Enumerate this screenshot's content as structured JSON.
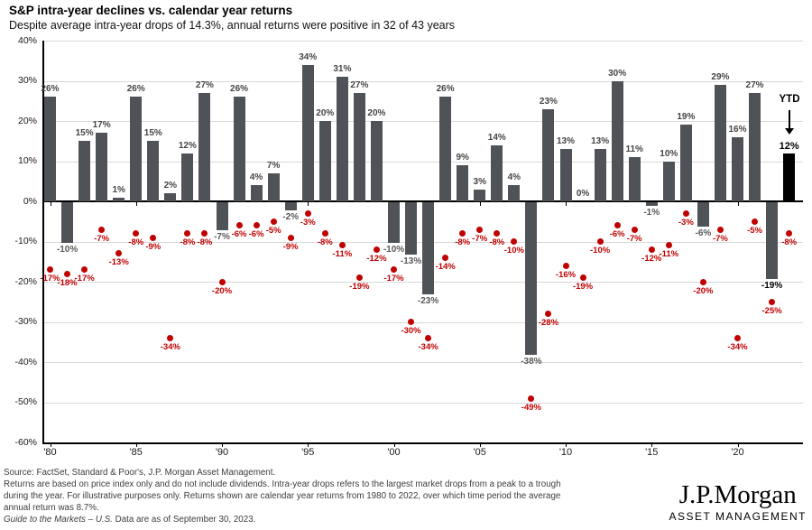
{
  "header": {
    "title": "S&P intra-year declines vs. calendar year returns",
    "subtitle": "Despite average intra-year drops of 14.3%, annual returns were positive in 32 of 43 years"
  },
  "chart_data": {
    "type": "bar",
    "title": "S&P intra-year declines vs. calendar year returns",
    "subtitle": "Despite average intra-year drops of 14.3%, annual returns were positive in 32 of 43 years",
    "ylim": [
      -60,
      40
    ],
    "grid": true,
    "y_ticks": [
      40,
      30,
      20,
      10,
      0,
      -10,
      -20,
      -30,
      -40,
      -50,
      -60
    ],
    "x_ticks": [
      {
        "year": 1980,
        "label": "'80"
      },
      {
        "year": 1985,
        "label": "'85"
      },
      {
        "year": 1990,
        "label": "'90"
      },
      {
        "year": 1995,
        "label": "'95"
      },
      {
        "year": 2000,
        "label": "'00"
      },
      {
        "year": 2005,
        "label": "'05"
      },
      {
        "year": 2010,
        "label": "'10"
      },
      {
        "year": 2015,
        "label": "'15"
      },
      {
        "year": 2020,
        "label": "'20"
      }
    ],
    "series": [
      {
        "name": "Calendar year return",
        "type": "bar",
        "color": "#4f5357"
      },
      {
        "name": "Intra-year decline",
        "type": "scatter",
        "color": "#c00000"
      }
    ],
    "points": [
      {
        "year": 1980,
        "bar": 26,
        "dot": -17
      },
      {
        "year": 1981,
        "bar": -10,
        "dot": -18
      },
      {
        "year": 1982,
        "bar": 15,
        "dot": -17
      },
      {
        "year": 1983,
        "bar": 17,
        "dot": -7
      },
      {
        "year": 1984,
        "bar": 1,
        "dot": -13
      },
      {
        "year": 1985,
        "bar": 26,
        "dot": -8
      },
      {
        "year": 1986,
        "bar": 15,
        "dot": -9
      },
      {
        "year": 1987,
        "bar": 2,
        "dot": -34
      },
      {
        "year": 1988,
        "bar": 12,
        "dot": -8
      },
      {
        "year": 1989,
        "bar": 27,
        "dot": -8
      },
      {
        "year": 1990,
        "bar": -7,
        "dot": -20
      },
      {
        "year": 1991,
        "bar": 26,
        "dot": -6
      },
      {
        "year": 1992,
        "bar": 4,
        "dot": -6
      },
      {
        "year": 1993,
        "bar": 7,
        "dot": -5
      },
      {
        "year": 1994,
        "bar": -2,
        "dot": -9
      },
      {
        "year": 1995,
        "bar": 34,
        "dot": -3
      },
      {
        "year": 1996,
        "bar": 20,
        "dot": -8
      },
      {
        "year": 1997,
        "bar": 31,
        "dot": -11
      },
      {
        "year": 1998,
        "bar": 27,
        "dot": -19
      },
      {
        "year": 1999,
        "bar": 20,
        "dot": -12
      },
      {
        "year": 2000,
        "bar": -10,
        "dot": -17
      },
      {
        "year": 2001,
        "bar": -13,
        "dot": -30
      },
      {
        "year": 2002,
        "bar": -23,
        "dot": -34
      },
      {
        "year": 2003,
        "bar": 26,
        "dot": -14
      },
      {
        "year": 2004,
        "bar": 9,
        "dot": -8
      },
      {
        "year": 2005,
        "bar": 3,
        "dot": -7
      },
      {
        "year": 2006,
        "bar": 14,
        "dot": -8
      },
      {
        "year": 2007,
        "bar": 4,
        "dot": -10
      },
      {
        "year": 2008,
        "bar": -38,
        "dot": -49
      },
      {
        "year": 2009,
        "bar": 23,
        "dot": -28
      },
      {
        "year": 2010,
        "bar": 13,
        "dot": -16
      },
      {
        "year": 2011,
        "bar": 0,
        "dot": -19
      },
      {
        "year": 2012,
        "bar": 13,
        "dot": -10
      },
      {
        "year": 2013,
        "bar": 30,
        "dot": -6
      },
      {
        "year": 2014,
        "bar": 11,
        "dot": -7
      },
      {
        "year": 2015,
        "bar": -1,
        "dot": -12
      },
      {
        "year": 2016,
        "bar": 10,
        "dot": -11
      },
      {
        "year": 2017,
        "bar": 19,
        "dot": -3
      },
      {
        "year": 2018,
        "bar": -6,
        "dot": -20
      },
      {
        "year": 2019,
        "bar": 29,
        "dot": -7
      },
      {
        "year": 2020,
        "bar": 16,
        "dot": -34
      },
      {
        "year": 2021,
        "bar": 27,
        "dot": -5
      },
      {
        "year": 2022,
        "bar": -19,
        "dot": -25,
        "dark_label": true
      },
      {
        "year": 2023,
        "bar": 12,
        "dot": -8,
        "ytd": true
      }
    ],
    "ytd_annotation": {
      "label": "YTD"
    },
    "colors": {
      "bar": "#4f5357",
      "ytd_bar": "#000000",
      "dot": "#c00000",
      "bar_label": "#454545",
      "neg_bar_label": "#595959",
      "grid": "#d8d8d8",
      "axis": "#000000"
    }
  },
  "footer": {
    "source_line": "Source: FactSet, Standard & Poor's, J.P. Morgan Asset Management.",
    "body_lines": [
      "Returns are based on price index only and do not include dividends.  Intra-year drops refers to the largest market drops from a peak to a trough",
      "during the year. For illustrative purposes only. Returns shown are calendar year returns from 1980 to 2022, over which time period the average",
      "annual return was 8.7%."
    ],
    "gtm_italic": "Guide to the Markets – U.S.",
    "gtm_rest": " Data are as of September 30, 2023."
  },
  "logo": {
    "brand": "J.P.Morgan",
    "division": "ASSET MANAGEMENT"
  }
}
